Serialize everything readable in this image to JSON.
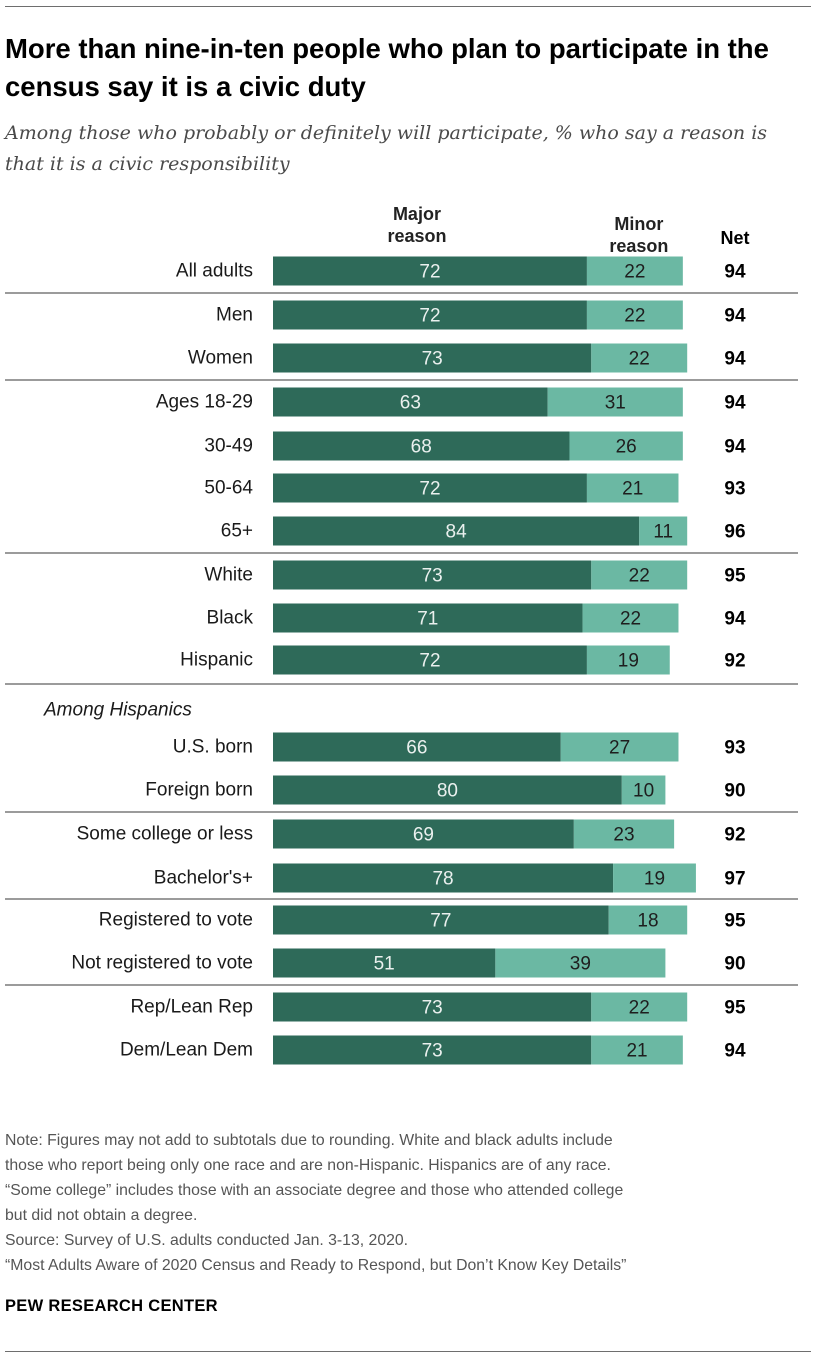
{
  "title": "More than nine-in-ten people who plan to participate in the census say it is a civic duty",
  "subtitle": "Among those who probably or definitely will participate, % who say a reason is that it is a civic responsibility",
  "colors": {
    "major": "#2e6a59",
    "minor": "#6bb8a3",
    "rule": "#7a7a7a"
  },
  "chart_data": {
    "type": "bar",
    "orientation": "horizontal",
    "stacked": true,
    "xlim": [
      0,
      100
    ],
    "columns": {
      "major": "Major\nreason",
      "minor": "Minor\nreason",
      "net": "Net"
    },
    "series": [
      {
        "name": "Major reason",
        "values": [
          72,
          72,
          73,
          63,
          68,
          72,
          84,
          73,
          71,
          72,
          66,
          80,
          69,
          78,
          77,
          51,
          73,
          73
        ]
      },
      {
        "name": "Minor reason",
        "values": [
          22,
          22,
          22,
          31,
          26,
          21,
          11,
          22,
          22,
          19,
          27,
          10,
          23,
          19,
          18,
          39,
          22,
          21
        ]
      }
    ],
    "net": [
      94,
      94,
      94,
      94,
      94,
      93,
      96,
      95,
      94,
      92,
      93,
      90,
      92,
      97,
      95,
      90,
      95,
      94
    ],
    "categories": [
      "All adults",
      "Men",
      "Women",
      "Ages 18-29",
      "30-49",
      "50-64",
      "65+",
      "White",
      "Black",
      "Hispanic",
      "U.S. born",
      "Foreign born",
      "Some college or less",
      "Bachelor's+",
      "Registered to vote",
      "Not registered to vote",
      "Rep/Lean Rep",
      "Dem/Lean Dem"
    ],
    "group_heading": "Among Hispanics",
    "group_heading_before_row": 10
  },
  "notes": [
    "Note: Figures may not add to subtotals due to rounding. White and black adults include",
    "those who report being only one race and are non-Hispanic. Hispanics are of any race.",
    "“Some college” includes those with an associate degree and those who attended college",
    "but did not obtain a degree.",
    "Source: Survey of U.S. adults conducted Jan. 3-13, 2020.",
    "“Most Adults Aware of 2020 Census and Ready to Respond, but Don’t Know Key Details”"
  ],
  "brand": "PEW RESEARCH CENTER"
}
